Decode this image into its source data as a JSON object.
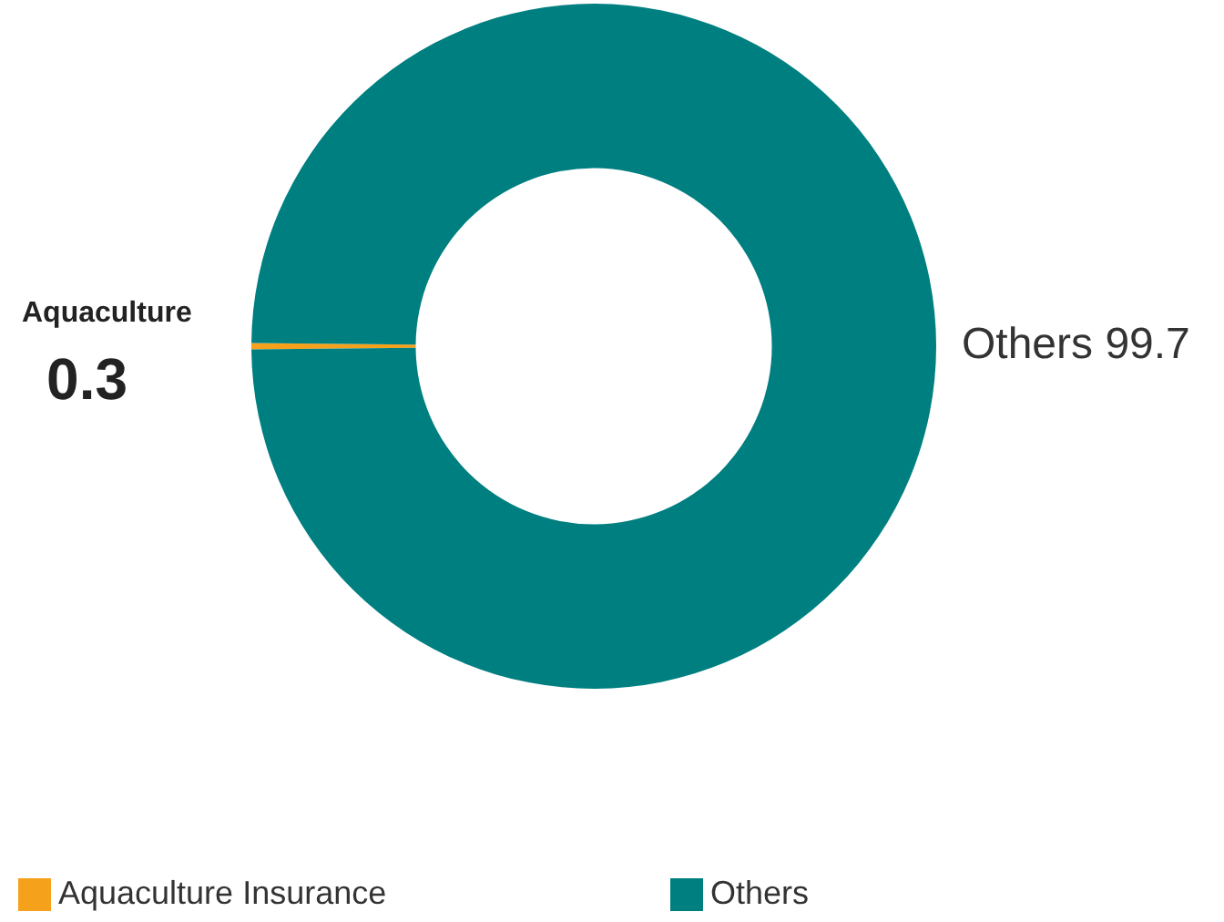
{
  "chart_data": {
    "type": "donut",
    "categories": [
      "Aquaculture Insurance",
      "Others"
    ],
    "values": [
      0.3,
      99.7
    ],
    "colors": [
      "#f5a11c",
      "#007f80"
    ],
    "value_labels": [
      "0.3",
      "Others 99.7"
    ],
    "annotations": [
      "Aquaculture"
    ],
    "legend": "bottom"
  }
}
